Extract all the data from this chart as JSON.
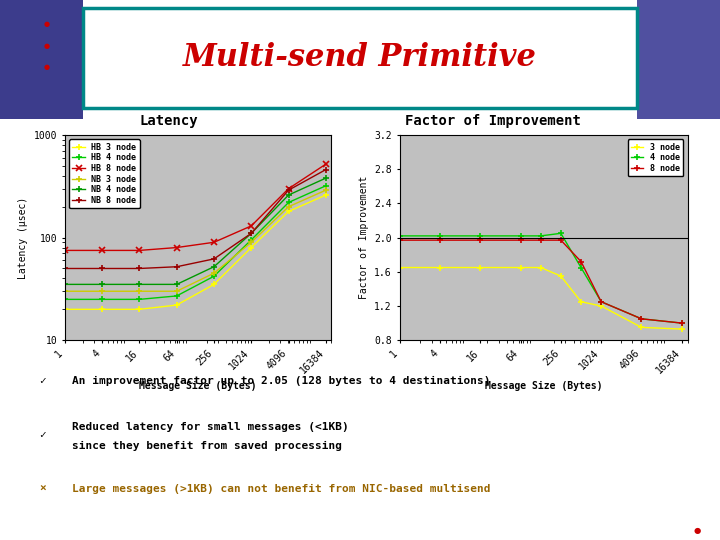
{
  "title": "Multi-send Primitive",
  "title_color": "#cc0000",
  "slide_bg": "#ffffff",
  "x_labels": [
    "1",
    "4",
    "16",
    "64",
    "256",
    "1024",
    "4096",
    "16384"
  ],
  "x_values": [
    1,
    4,
    16,
    64,
    256,
    1024,
    4096,
    16384
  ],
  "latency_title": "Latency",
  "latency_ylabel": "Latency (µsec)",
  "latency_xlabel": "Message Size (Bytes)",
  "hb3_latency": [
    20,
    20,
    20,
    22,
    35,
    80,
    180,
    260
  ],
  "hb4_latency": [
    25,
    25,
    25,
    27,
    42,
    95,
    220,
    320
  ],
  "hb8_latency": [
    75,
    75,
    75,
    80,
    90,
    130,
    300,
    520
  ],
  "nb3_latency": [
    30,
    30,
    30,
    30,
    45,
    90,
    200,
    290
  ],
  "nb4_latency": [
    35,
    35,
    35,
    35,
    52,
    110,
    260,
    380
  ],
  "nb8_latency": [
    50,
    50,
    50,
    52,
    62,
    110,
    290,
    460
  ],
  "improvement_title": "Factor of Improvement",
  "improvement_ylabel": "Factor of Improvement",
  "improvement_xlabel": "Message Size (Bytes)",
  "imp3_node": [
    1.65,
    1.65,
    1.65,
    1.65,
    1.65,
    1.55,
    1.25,
    1.2,
    0.95,
    0.93
  ],
  "imp4_node": [
    2.02,
    2.02,
    2.02,
    2.02,
    2.02,
    2.05,
    1.65,
    1.25,
    1.05,
    1.0
  ],
  "imp8_node": [
    1.97,
    1.97,
    1.97,
    1.97,
    1.97,
    1.97,
    1.72,
    1.25,
    1.05,
    1.0
  ],
  "imp_x": [
    1,
    4,
    16,
    64,
    128,
    256,
    512,
    1024,
    4096,
    16384
  ],
  "color_yellow": "#ffff00",
  "color_green": "#00cc00",
  "color_red": "#cc0000",
  "color_dark_yellow": "#cccc00",
  "color_dark_green": "#009900",
  "color_dark_red": "#990000",
  "plot_bg": "#c0c0c0",
  "hline_y": 2.0,
  "latency_ylim_min": 10,
  "latency_ylim_max": 1000,
  "improvement_ylim_min": 0.8,
  "improvement_ylim_max": 3.2,
  "improvement_yticks": [
    0.8,
    1.2,
    1.6,
    2.0,
    2.4,
    2.8,
    3.2
  ],
  "purple_left": "#3c3c8c",
  "purple_right": "#5050a0",
  "teal_border": "#008888",
  "dot_color": "#cc0000",
  "bullet_check_color": "#000000",
  "bullet_x_color": "#996600",
  "title_fontsize": 22,
  "heading_fontsize": 10,
  "axis_label_fontsize": 7,
  "tick_fontsize": 7,
  "legend_fontsize": 6,
  "bullet_fontsize": 8
}
